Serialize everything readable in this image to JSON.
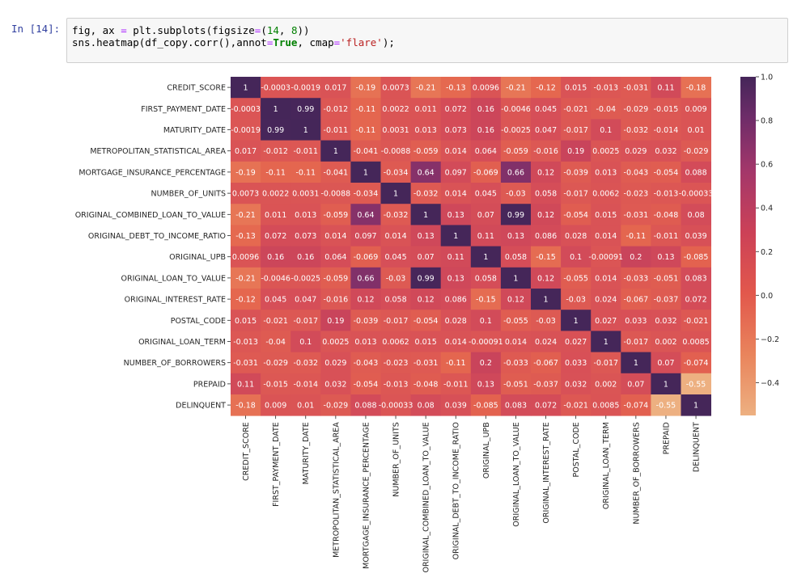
{
  "cell": {
    "prompt": "In [14]:",
    "code": {
      "line1": {
        "a": "fig, ax ",
        "b": "=",
        "c": " plt.subplots(figsize",
        "d": "=",
        "e": "(",
        "f": "14",
        "g": ", ",
        "h": "8",
        "i": "))"
      },
      "line2": {
        "a": "sns.heatmap(df_copy.corr(),annot",
        "b": "=",
        "c": "True",
        "d": ", cmap",
        "e": "=",
        "f": "'flare'",
        "g": ");"
      }
    }
  },
  "chart_data": {
    "type": "heatmap",
    "cmap": "flare",
    "title": "",
    "labels": [
      "CREDIT_SCORE",
      "FIRST_PAYMENT_DATE",
      "MATURITY_DATE",
      "METROPOLITAN_STATISTICAL_AREA",
      "MORTGAGE_INSURANCE_PERCENTAGE",
      "NUMBER_OF_UNITS",
      "ORIGINAL_COMBINED_LOAN_TO_VALUE",
      "ORIGINAL_DEBT_TO_INCOME_RATIO",
      "ORIGINAL_UPB",
      "ORIGINAL_LOAN_TO_VALUE",
      "ORIGINAL_INTEREST_RATE",
      "POSTAL_CODE",
      "ORIGINAL_LOAN_TERM",
      "NUMBER_OF_BORROWERS",
      "PREPAID",
      "DELINQUENT"
    ],
    "matrix": [
      [
        1,
        -0.0003,
        -0.0019,
        0.017,
        -0.19,
        0.0073,
        -0.21,
        -0.13,
        0.0096,
        -0.21,
        -0.12,
        0.015,
        -0.013,
        -0.031,
        0.11,
        -0.18
      ],
      [
        -0.0003,
        1,
        0.99,
        -0.012,
        -0.11,
        0.0022,
        0.011,
        0.072,
        0.16,
        -0.0046,
        0.045,
        -0.021,
        -0.04,
        -0.029,
        -0.015,
        0.009
      ],
      [
        -0.0019,
        0.99,
        1,
        -0.011,
        -0.11,
        0.0031,
        0.013,
        0.073,
        0.16,
        -0.0025,
        0.047,
        -0.017,
        0.1,
        -0.032,
        -0.014,
        0.01
      ],
      [
        0.017,
        -0.012,
        -0.011,
        1,
        -0.041,
        -0.0088,
        -0.059,
        0.014,
        0.064,
        -0.059,
        -0.016,
        0.19,
        0.0025,
        0.029,
        0.032,
        -0.029
      ],
      [
        -0.19,
        -0.11,
        -0.11,
        -0.041,
        1,
        -0.034,
        0.64,
        0.097,
        -0.069,
        0.66,
        0.12,
        -0.039,
        0.013,
        -0.043,
        -0.054,
        0.088
      ],
      [
        0.0073,
        0.0022,
        0.0031,
        -0.0088,
        -0.034,
        1,
        -0.032,
        0.014,
        0.045,
        -0.03,
        0.058,
        -0.017,
        0.0062,
        -0.023,
        -0.013,
        -0.00033
      ],
      [
        -0.21,
        0.011,
        0.013,
        -0.059,
        0.64,
        -0.032,
        1,
        0.13,
        0.07,
        0.99,
        0.12,
        -0.054,
        0.015,
        -0.031,
        -0.048,
        0.08
      ],
      [
        -0.13,
        0.072,
        0.073,
        0.014,
        0.097,
        0.014,
        0.13,
        1,
        0.11,
        0.13,
        0.086,
        0.028,
        0.014,
        -0.11,
        -0.011,
        0.039
      ],
      [
        0.0096,
        0.16,
        0.16,
        0.064,
        -0.069,
        0.045,
        0.07,
        0.11,
        1,
        0.058,
        -0.15,
        0.1,
        -0.00091,
        0.2,
        0.13,
        -0.085
      ],
      [
        -0.21,
        -0.0046,
        -0.0025,
        -0.059,
        0.66,
        -0.03,
        0.99,
        0.13,
        0.058,
        1,
        0.12,
        -0.055,
        0.014,
        -0.033,
        -0.051,
        0.083
      ],
      [
        -0.12,
        0.045,
        0.047,
        -0.016,
        0.12,
        0.058,
        0.12,
        0.086,
        -0.15,
        0.12,
        1,
        -0.03,
        0.024,
        -0.067,
        -0.037,
        0.072
      ],
      [
        0.015,
        -0.021,
        -0.017,
        0.19,
        -0.039,
        -0.017,
        -0.054,
        0.028,
        0.1,
        -0.055,
        -0.03,
        1,
        0.027,
        0.033,
        0.032,
        -0.021
      ],
      [
        -0.013,
        -0.04,
        0.1,
        0.0025,
        0.013,
        0.0062,
        0.015,
        0.014,
        -0.00091,
        0.014,
        0.024,
        0.027,
        1,
        -0.017,
        0.002,
        0.0085
      ],
      [
        -0.031,
        -0.029,
        -0.032,
        0.029,
        -0.043,
        -0.023,
        -0.031,
        -0.11,
        0.2,
        -0.033,
        -0.067,
        0.033,
        -0.017,
        1,
        0.07,
        -0.074
      ],
      [
        0.11,
        -0.015,
        -0.014,
        0.032,
        -0.054,
        -0.013,
        -0.048,
        -0.011,
        0.13,
        -0.051,
        -0.037,
        0.032,
        0.002,
        0.07,
        1,
        -0.55
      ],
      [
        -0.18,
        0.009,
        0.01,
        -0.029,
        0.088,
        -0.00033,
        0.08,
        0.039,
        -0.085,
        0.083,
        0.072,
        -0.021,
        0.0085,
        -0.074,
        -0.55,
        1
      ]
    ],
    "annot": [
      [
        "1",
        "-0.0003",
        "-0.0019",
        "0.017",
        "-0.19",
        "0.0073",
        "-0.21",
        "-0.13",
        "0.0096",
        "-0.21",
        "-0.12",
        "0.015",
        "-0.013",
        "-0.031",
        "0.11",
        "-0.18"
      ],
      [
        "-0.0003",
        "1",
        "0.99",
        "-0.012",
        "-0.11",
        "0.0022",
        "0.011",
        "0.072",
        "0.16",
        "-0.0046",
        "0.045",
        "-0.021",
        "-0.04",
        "-0.029",
        "-0.015",
        "0.009"
      ],
      [
        "-0.0019",
        "0.99",
        "1",
        "-0.011",
        "-0.11",
        "0.0031",
        "0.013",
        "0.073",
        "0.16",
        "-0.0025",
        "0.047",
        "-0.017",
        "0.1",
        "-0.032",
        "-0.014",
        "0.01"
      ],
      [
        "0.017",
        "-0.012",
        "-0.011",
        "1",
        "-0.041",
        "-0.0088",
        "-0.059",
        "0.014",
        "0.064",
        "-0.059",
        "-0.016",
        "0.19",
        "0.0025",
        "0.029",
        "0.032",
        "-0.029"
      ],
      [
        "-0.19",
        "-0.11",
        "-0.11",
        "-0.041",
        "1",
        "-0.034",
        "0.64",
        "0.097",
        "-0.069",
        "0.66",
        "0.12",
        "-0.039",
        "0.013",
        "-0.043",
        "-0.054",
        "0.088"
      ],
      [
        "0.0073",
        "0.0022",
        "0.0031",
        "-0.0088",
        "-0.034",
        "1",
        "-0.032",
        "0.014",
        "0.045",
        "-0.03",
        "0.058",
        "-0.017",
        "0.0062",
        "-0.023",
        "-0.013",
        "-0.00033"
      ],
      [
        "-0.21",
        "0.011",
        "0.013",
        "-0.059",
        "0.64",
        "-0.032",
        "1",
        "0.13",
        "0.07",
        "0.99",
        "0.12",
        "-0.054",
        "0.015",
        "-0.031",
        "-0.048",
        "0.08"
      ],
      [
        "-0.13",
        "0.072",
        "0.073",
        "0.014",
        "0.097",
        "0.014",
        "0.13",
        "1",
        "0.11",
        "0.13",
        "0.086",
        "0.028",
        "0.014",
        "-0.11",
        "-0.011",
        "0.039"
      ],
      [
        "0.0096",
        "0.16",
        "0.16",
        "0.064",
        "-0.069",
        "0.045",
        "0.07",
        "0.11",
        "1",
        "0.058",
        "-0.15",
        "0.1",
        "-0.00091",
        "0.2",
        "0.13",
        "-0.085"
      ],
      [
        "-0.21",
        "-0.0046",
        "-0.0025",
        "-0.059",
        "0.66",
        "-0.03",
        "0.99",
        "0.13",
        "0.058",
        "1",
        "0.12",
        "-0.055",
        "0.014",
        "-0.033",
        "-0.051",
        "0.083"
      ],
      [
        "-0.12",
        "0.045",
        "0.047",
        "-0.016",
        "0.12",
        "0.058",
        "0.12",
        "0.086",
        "-0.15",
        "0.12",
        "1",
        "-0.03",
        "0.024",
        "-0.067",
        "-0.037",
        "0.072"
      ],
      [
        "0.015",
        "-0.021",
        "-0.017",
        "0.19",
        "-0.039",
        "-0.017",
        "-0.054",
        "0.028",
        "0.1",
        "-0.055",
        "-0.03",
        "1",
        "0.027",
        "0.033",
        "0.032",
        "-0.021"
      ],
      [
        "-0.013",
        "-0.04",
        "0.1",
        "0.0025",
        "0.013",
        "0.0062",
        "0.015",
        "0.014",
        "-0.00091",
        "0.014",
        "0.024",
        "0.027",
        "1",
        "-0.017",
        "0.002",
        "0.0085"
      ],
      [
        "-0.031",
        "-0.029",
        "-0.032",
        "0.029",
        "-0.043",
        "-0.023",
        "-0.031",
        "-0.11",
        "0.2",
        "-0.033",
        "-0.067",
        "0.033",
        "-0.017",
        "1",
        "0.07",
        "-0.074"
      ],
      [
        "0.11",
        "-0.015",
        "-0.014",
        "0.032",
        "-0.054",
        "-0.013",
        "-0.048",
        "-0.011",
        "0.13",
        "-0.051",
        "-0.037",
        "0.032",
        "0.002",
        "0.07",
        "1",
        "-0.55"
      ],
      [
        "-0.18",
        "0.009",
        "0.01",
        "-0.029",
        "0.088",
        "-0.00033",
        "0.08",
        "0.039",
        "-0.085",
        "0.083",
        "0.072",
        "-0.021",
        "0.0085",
        "-0.074",
        "-0.55",
        "1"
      ]
    ],
    "colorbar": {
      "ticks": [
        1.0,
        0.8,
        0.6,
        0.4,
        0.2,
        0.0,
        -0.2,
        -0.4
      ],
      "tick_labels": [
        "1.0",
        "0.8",
        "0.6",
        "0.4",
        "0.2",
        "0.0",
        "−0.2",
        "−0.4"
      ]
    },
    "vmin": -0.55,
    "vmax": 1.0,
    "colors": {
      "low": "#e9a06f",
      "mid1": "#e3674d",
      "mid2": "#cf4a5a",
      "mid3": "#a93c68",
      "mid4": "#7b2f6b",
      "high": "#452659"
    }
  }
}
